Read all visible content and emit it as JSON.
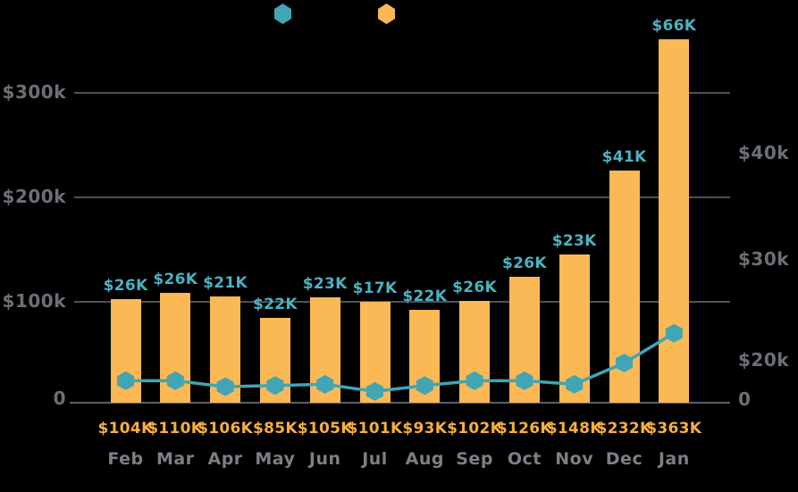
{
  "legend": {
    "position": "top",
    "items": [
      {
        "series": "line",
        "marker_shape": "hexagon",
        "marker_color": "#41A5B4",
        "label": ""
      },
      {
        "series": "bars",
        "marker_shape": "hexagon",
        "marker_color": "#FBB955",
        "label": ""
      }
    ]
  },
  "chart_data": {
    "type": "combo",
    "subtypes": [
      "bar",
      "line"
    ],
    "categories": [
      "Feb",
      "Mar",
      "Apr",
      "May",
      "Jun",
      "Jul",
      "Aug",
      "Sep",
      "Oct",
      "Nov",
      "Dec",
      "Jan"
    ],
    "series": [
      {
        "name": "bars",
        "type": "bar",
        "axis": "left",
        "color": "#FBB955",
        "values": [
          104,
          110,
          106,
          85,
          105,
          101,
          93,
          102,
          126,
          148,
          232,
          363
        ],
        "point_labels": [
          "$104K",
          "$110K",
          "$106K",
          "$85K",
          "$105K",
          "$101K",
          "$93K",
          "$102K",
          "$126K",
          "$148K",
          "$232K",
          "$363K"
        ]
      },
      {
        "name": "line",
        "type": "line",
        "axis": "right",
        "color": "#41A5B4",
        "marker": "hexagon",
        "values": [
          26,
          26,
          21,
          22,
          23,
          17,
          22,
          26,
          26,
          23,
          41,
          66
        ],
        "point_labels": [
          "$26K",
          "$26K",
          "$21K",
          "$22K",
          "$23K",
          "$17K",
          "$22K",
          "$26K",
          "$26K",
          "$23K",
          "$41K",
          "$66K"
        ]
      }
    ],
    "left_axis": {
      "tick_labels": [
        "$300k",
        "$200k",
        "$100k",
        "0"
      ]
    },
    "right_axis": {
      "tick_labels": [
        "$40k",
        "$30k",
        "$20k",
        "0"
      ]
    },
    "gridlines": "horizontal",
    "legend_position": "top"
  },
  "colors": {
    "background": "#000000",
    "bar": "#FBB955",
    "bar_value_label": "#F8AE3E",
    "line": "#41A5B4",
    "line_value_label": "#4BB2C2",
    "axis_tick_text": "#6B7077",
    "month_text": "#7B8086",
    "gridline": "#4C525A",
    "baseline": "#5A6068"
  }
}
